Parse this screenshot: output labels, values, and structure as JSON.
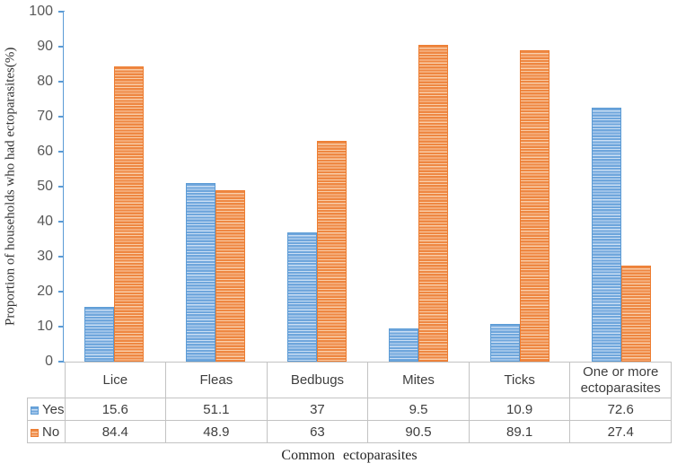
{
  "chart_data": {
    "type": "bar",
    "title": "",
    "categories": [
      "Lice",
      "Fleas",
      "Bedbugs",
      "Mites",
      "Ticks",
      "One or more ectoparasites"
    ],
    "series": [
      {
        "name": "Yes",
        "values": [
          15.6,
          51.1,
          37,
          9.5,
          10.9,
          72.6
        ],
        "color_dark": "#6FA6DC",
        "color_light": "#CBDFF4",
        "edge_color": "#5B9BD5"
      },
      {
        "name": "No",
        "values": [
          84.4,
          48.9,
          63,
          90.5,
          89.1,
          27.4
        ],
        "color_dark": "#EE8742",
        "color_light": "#F9CEA9",
        "edge_color": "#ED7D31"
      }
    ],
    "xlabel": "Common ectoparasites",
    "ylabel": "Proportion of households who had ectoparasites(%)",
    "ylim": [
      0,
      100
    ],
    "yticks": [
      0,
      10,
      20,
      30,
      40,
      50,
      60,
      70,
      80,
      90,
      100
    ],
    "grid": false,
    "axis_color": "#5B9BD5",
    "legend_position": "table-left",
    "bar_pattern": "horizontal-stripes"
  }
}
